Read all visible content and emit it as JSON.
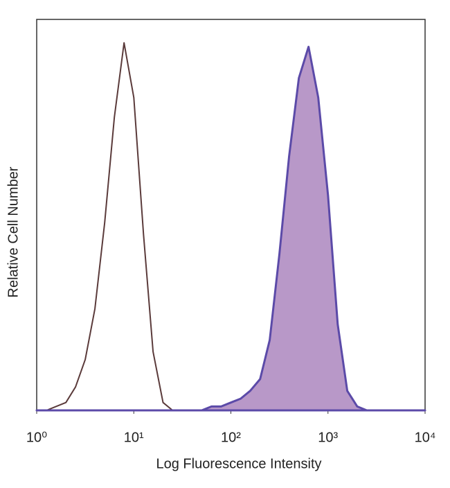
{
  "chart_data": {
    "type": "area",
    "xscale": "log",
    "xlabel": "Log Fluorescence Intensity",
    "ylabel": "Relative Cell Number",
    "x": [
      1,
      1.26,
      1.58,
      2,
      2.51,
      3.16,
      3.98,
      5.01,
      6.31,
      7.94,
      10,
      12.6,
      15.8,
      20,
      25.1,
      31.6,
      39.8,
      50.1,
      63.1,
      79.4,
      100,
      126,
      158,
      200,
      251,
      316,
      398,
      501,
      631,
      794,
      1000,
      1260,
      1580,
      2000,
      2510,
      3160,
      3980,
      5010,
      6310,
      7940,
      10000
    ],
    "series": [
      {
        "color": "#5a3a3a",
        "filled": false,
        "values": [
          0,
          0,
          1,
          2,
          6,
          13,
          26,
          48,
          75,
          94,
          80,
          45,
          15,
          2,
          0,
          0,
          0,
          0,
          0,
          0,
          0,
          0,
          0,
          0,
          0,
          0,
          0,
          0,
          0,
          0,
          0,
          0,
          0,
          0,
          0,
          0,
          0,
          0,
          0,
          0,
          0
        ]
      },
      {
        "color": "#5b4aa8",
        "fill": "#b898c8",
        "filled": true,
        "values": [
          0,
          0,
          0,
          0,
          0,
          0,
          0,
          0,
          0,
          0,
          0,
          0,
          0,
          0,
          0,
          0,
          0,
          0,
          1,
          1,
          2,
          3,
          5,
          8,
          18,
          40,
          65,
          85,
          93,
          80,
          55,
          22,
          5,
          1,
          0,
          0,
          0,
          0,
          0,
          0,
          0
        ]
      }
    ],
    "xlim": [
      1,
      10000
    ],
    "xticks": [
      {
        "value": 1,
        "label": "10⁰"
      },
      {
        "value": 10,
        "label": "10¹"
      },
      {
        "value": 100,
        "label": "10²"
      },
      {
        "value": 1000,
        "label": "10³"
      },
      {
        "value": 10000,
        "label": "10⁴"
      }
    ],
    "ylim": [
      0,
      100
    ]
  }
}
